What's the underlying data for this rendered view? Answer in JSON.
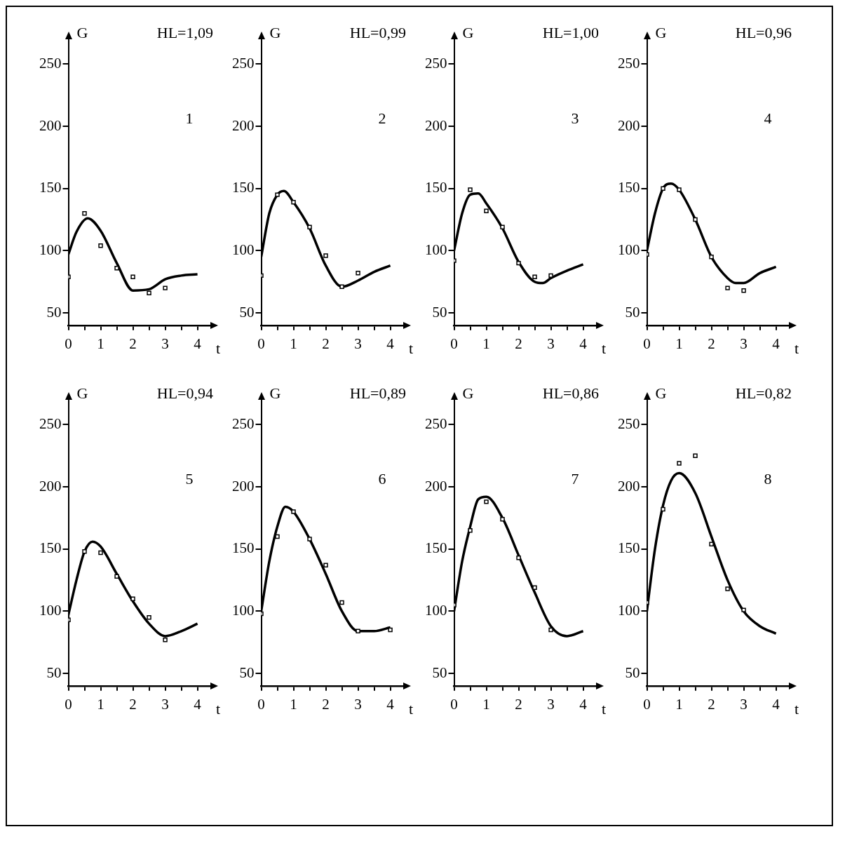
{
  "chart_data": [
    {
      "type": "scatter",
      "title": "HL=1,09",
      "xlabel": "t",
      "ylabel": "G",
      "annotations": [
        "1"
      ],
      "xlim": [
        0,
        4.4
      ],
      "xticks": [
        0,
        {
          "value": 0.5,
          "label": null
        },
        1,
        {
          "value": 1.5,
          "label": null
        },
        2,
        {
          "value": 2.5,
          "label": null
        },
        3,
        {
          "value": 3.5,
          "label": null
        },
        4
      ],
      "ylim": [
        40,
        270
      ],
      "yticks": [
        50,
        100,
        150,
        200,
        250
      ],
      "marker": "square",
      "series": [
        {
          "type": "scatter",
          "color": "#000000",
          "x": [
            0,
            0.5,
            1,
            1.5,
            2,
            2.5,
            3
          ],
          "values": [
            79,
            130,
            104,
            86,
            79,
            66,
            70
          ]
        },
        {
          "type": "line",
          "color": "#000000",
          "marker": "none",
          "x": [
            0,
            0.25,
            0.6,
            1,
            1.5,
            2,
            2.5,
            3,
            3.5,
            4
          ],
          "values": [
            97,
            115,
            126,
            116,
            90,
            68,
            69,
            77,
            80,
            81
          ]
        }
      ]
    },
    {
      "type": "scatter",
      "title": "HL=0,99",
      "xlabel": "t",
      "ylabel": "G",
      "annotations": [
        "2"
      ],
      "xlim": [
        0,
        4.4
      ],
      "xticks": [
        0,
        {
          "value": 0.5,
          "label": null
        },
        1,
        {
          "value": 1.5,
          "label": null
        },
        2,
        {
          "value": 2.5,
          "label": null
        },
        3,
        {
          "value": 3.5,
          "label": null
        },
        4
      ],
      "ylim": [
        40,
        270
      ],
      "yticks": [
        50,
        100,
        150,
        200,
        250
      ],
      "marker": "square",
      "series": [
        {
          "type": "scatter",
          "color": "#000000",
          "x": [
            0,
            0.5,
            1,
            1.5,
            2,
            2.5,
            3
          ],
          "values": [
            80,
            145,
            139,
            119,
            96,
            71,
            82
          ]
        },
        {
          "type": "line",
          "color": "#000000",
          "marker": "none",
          "x": [
            0,
            0.25,
            0.5,
            0.7,
            1,
            1.5,
            2,
            2.5,
            3,
            3.5,
            4
          ],
          "values": [
            95,
            130,
            145,
            148,
            139,
            118,
            88,
            71,
            76,
            83,
            88
          ]
        }
      ]
    },
    {
      "type": "scatter",
      "title": "HL=1,00",
      "xlabel": "t",
      "ylabel": "G",
      "annotations": [
        "3"
      ],
      "xlim": [
        0,
        4.4
      ],
      "xticks": [
        0,
        {
          "value": 0.5,
          "label": null
        },
        1,
        {
          "value": 1.5,
          "label": null
        },
        2,
        {
          "value": 2.5,
          "label": null
        },
        3,
        {
          "value": 3.5,
          "label": null
        },
        4
      ],
      "ylim": [
        40,
        270
      ],
      "yticks": [
        50,
        100,
        150,
        200,
        250
      ],
      "marker": "square",
      "series": [
        {
          "type": "scatter",
          "color": "#000000",
          "x": [
            0,
            0.5,
            1,
            1.5,
            2,
            2.5,
            3
          ],
          "values": [
            92,
            149,
            132,
            119,
            90,
            79,
            80
          ]
        },
        {
          "type": "line",
          "color": "#000000",
          "marker": "none",
          "x": [
            0,
            0.25,
            0.5,
            0.75,
            1,
            1.5,
            2,
            2.5,
            2.75,
            3,
            3.5,
            4
          ],
          "values": [
            100,
            130,
            145,
            146,
            138,
            118,
            91,
            75,
            74,
            78,
            84,
            89
          ]
        }
      ]
    },
    {
      "type": "scatter",
      "title": "HL=0,96",
      "xlabel": "t",
      "ylabel": "G",
      "annotations": [
        "4"
      ],
      "xlim": [
        0,
        4.4
      ],
      "xticks": [
        0,
        {
          "value": 0.5,
          "label": null
        },
        1,
        {
          "value": 1.5,
          "label": null
        },
        2,
        {
          "value": 2.5,
          "label": null
        },
        3,
        {
          "value": 3.5,
          "label": null
        },
        4
      ],
      "ylim": [
        40,
        270
      ],
      "yticks": [
        50,
        100,
        150,
        200,
        250
      ],
      "marker": "square",
      "series": [
        {
          "type": "scatter",
          "color": "#000000",
          "x": [
            0,
            0.5,
            1,
            1.5,
            2,
            2.5,
            3
          ],
          "values": [
            97,
            150,
            149,
            125,
            95,
            70,
            68
          ]
        },
        {
          "type": "line",
          "color": "#000000",
          "marker": "none",
          "x": [
            0,
            0.25,
            0.5,
            0.75,
            1,
            1.5,
            2,
            2.5,
            2.75,
            3,
            3.5,
            4
          ],
          "values": [
            100,
            130,
            150,
            154,
            149,
            125,
            95,
            78,
            74,
            74,
            82,
            87
          ]
        }
      ]
    },
    {
      "type": "scatter",
      "title": "HL=0,94",
      "xlabel": "t",
      "ylabel": "G",
      "annotations": [
        "5"
      ],
      "xlim": [
        0,
        4.4
      ],
      "xticks": [
        0,
        {
          "value": 0.5,
          "label": null
        },
        1,
        {
          "value": 1.5,
          "label": null
        },
        2,
        {
          "value": 2.5,
          "label": null
        },
        3,
        {
          "value": 3.5,
          "label": null
        },
        4
      ],
      "ylim": [
        40,
        270
      ],
      "yticks": [
        50,
        100,
        150,
        200,
        250
      ],
      "marker": "square",
      "series": [
        {
          "type": "scatter",
          "color": "#000000",
          "x": [
            0,
            0.5,
            1,
            1.5,
            2,
            2.5,
            3
          ],
          "values": [
            93,
            148,
            147,
            128,
            110,
            95,
            77
          ]
        },
        {
          "type": "line",
          "color": "#000000",
          "marker": "none",
          "x": [
            0,
            0.25,
            0.5,
            0.75,
            1,
            1.5,
            2,
            2.5,
            3,
            3.5,
            4
          ],
          "values": [
            97,
            125,
            148,
            156,
            152,
            130,
            108,
            90,
            80,
            84,
            90
          ]
        }
      ]
    },
    {
      "type": "scatter",
      "title": "HL=0,89",
      "xlabel": "t",
      "ylabel": "G",
      "annotations": [
        "6"
      ],
      "xlim": [
        0,
        4.4
      ],
      "xticks": [
        0,
        {
          "value": 0.5,
          "label": null
        },
        1,
        {
          "value": 1.5,
          "label": null
        },
        2,
        {
          "value": 2.5,
          "label": null
        },
        3,
        {
          "value": 3.5,
          "label": null
        },
        4
      ],
      "ylim": [
        40,
        270
      ],
      "yticks": [
        50,
        100,
        150,
        200,
        250
      ],
      "marker": "square",
      "series": [
        {
          "type": "scatter",
          "color": "#000000",
          "x": [
            0,
            0.5,
            1,
            1.5,
            2,
            2.5,
            3,
            4
          ],
          "values": [
            98,
            160,
            180,
            158,
            137,
            107,
            84,
            85
          ]
        },
        {
          "type": "line",
          "color": "#000000",
          "marker": "none",
          "x": [
            0,
            0.25,
            0.5,
            0.75,
            1,
            1.5,
            2,
            2.5,
            3,
            3.5,
            4
          ],
          "values": [
            100,
            140,
            168,
            184,
            180,
            158,
            130,
            100,
            84,
            84,
            87
          ]
        }
      ]
    },
    {
      "type": "scatter",
      "title": "HL=0,86",
      "xlabel": "t",
      "ylabel": "G",
      "annotations": [
        "7"
      ],
      "xlim": [
        0,
        4.4
      ],
      "xticks": [
        0,
        {
          "value": 0.5,
          "label": null
        },
        1,
        {
          "value": 1.5,
          "label": null
        },
        2,
        {
          "value": 2.5,
          "label": null
        },
        3,
        {
          "value": 3.5,
          "label": null
        },
        4
      ],
      "ylim": [
        40,
        270
      ],
      "yticks": [
        50,
        100,
        150,
        200,
        250
      ],
      "marker": "square",
      "series": [
        {
          "type": "scatter",
          "color": "#000000",
          "x": [
            0,
            0.5,
            1,
            1.5,
            2,
            2.5,
            3
          ],
          "values": [
            105,
            165,
            188,
            174,
            143,
            119,
            85
          ]
        },
        {
          "type": "line",
          "color": "#000000",
          "marker": "none",
          "x": [
            0,
            0.25,
            0.5,
            0.75,
            1,
            1.5,
            2,
            2.5,
            3,
            3.5,
            4
          ],
          "values": [
            100,
            140,
            168,
            190,
            192,
            175,
            145,
            115,
            88,
            80,
            84
          ]
        }
      ]
    },
    {
      "type": "scatter",
      "title": "HL=0,82",
      "xlabel": "t",
      "ylabel": "G",
      "annotations": [
        "8"
      ],
      "xlim": [
        0,
        4.4
      ],
      "xticks": [
        0,
        {
          "value": 0.5,
          "label": null
        },
        1,
        {
          "value": 1.5,
          "label": null
        },
        2,
        {
          "value": 2.5,
          "label": null
        },
        3,
        {
          "value": 3.5,
          "label": null
        },
        4
      ],
      "ylim": [
        40,
        270
      ],
      "yticks": [
        50,
        100,
        150,
        200,
        250
      ],
      "marker": "square",
      "series": [
        {
          "type": "scatter",
          "color": "#000000",
          "x": [
            0,
            0.5,
            1,
            1.5,
            2,
            2.5,
            3
          ],
          "values": [
            107,
            182,
            219,
            225,
            154,
            118,
            101
          ]
        },
        {
          "type": "line",
          "color": "#000000",
          "marker": "none",
          "x": [
            0,
            0.25,
            0.5,
            0.75,
            1,
            1.5,
            2,
            2.5,
            3,
            3.5,
            4
          ],
          "values": [
            100,
            150,
            185,
            205,
            211,
            195,
            160,
            125,
            100,
            88,
            82
          ]
        }
      ]
    }
  ]
}
